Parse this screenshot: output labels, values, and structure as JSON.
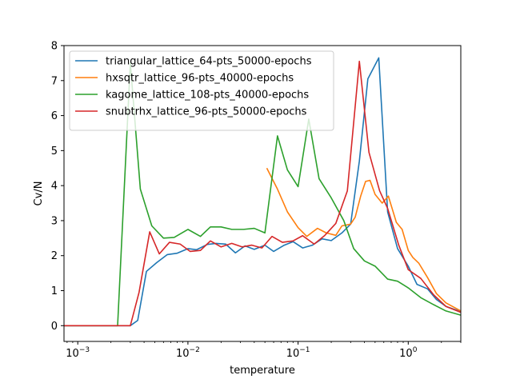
{
  "chart_data": {
    "type": "line",
    "xlabel": "temperature",
    "ylabel": "Cv/N",
    "xscale": "log",
    "xlim": [
      0.00075,
      3.0
    ],
    "ylim": [
      -0.45,
      8.0
    ],
    "x_ticks": [
      {
        "value": 0.001,
        "base": "10",
        "exp": "−3"
      },
      {
        "value": 0.01,
        "base": "10",
        "exp": "−2"
      },
      {
        "value": 0.1,
        "base": "10",
        "exp": "−1"
      },
      {
        "value": 1,
        "base": "10",
        "exp": "0"
      }
    ],
    "y_ticks": [
      0,
      1,
      2,
      3,
      4,
      5,
      6,
      7,
      8
    ],
    "legend_position": "upper-left",
    "series": [
      {
        "name": "triangular_lattice_64-pts_50000-epochs",
        "color": "#1f77b4",
        "x": [
          0.00075,
          0.001,
          0.0015,
          0.002,
          0.0025,
          0.003,
          0.0035,
          0.0042,
          0.0052,
          0.0065,
          0.008,
          0.01,
          0.012,
          0.015,
          0.018,
          0.022,
          0.027,
          0.033,
          0.04,
          0.05,
          0.06,
          0.075,
          0.09,
          0.11,
          0.135,
          0.165,
          0.2,
          0.25,
          0.3,
          0.36,
          0.43,
          0.54,
          0.65,
          0.8,
          1.0,
          1.2,
          1.5,
          1.8,
          2.2,
          3.0
        ],
        "y": [
          0,
          0,
          0,
          0,
          0,
          0,
          0.15,
          1.55,
          1.8,
          2.03,
          2.07,
          2.2,
          2.17,
          2.32,
          2.35,
          2.33,
          2.08,
          2.28,
          2.18,
          2.3,
          2.12,
          2.3,
          2.4,
          2.22,
          2.3,
          2.48,
          2.43,
          2.65,
          2.9,
          4.7,
          7.05,
          7.65,
          3.25,
          2.2,
          1.7,
          1.18,
          1.05,
          0.75,
          0.55,
          0.4
        ]
      },
      {
        "name": "hxsqtr_lattice_96-pts_40000-epochs",
        "color": "#ff7f0e",
        "x": [
          0.052,
          0.065,
          0.08,
          0.1,
          0.12,
          0.15,
          0.18,
          0.22,
          0.25,
          0.3,
          0.33,
          0.37,
          0.41,
          0.45,
          0.5,
          0.58,
          0.66,
          0.78,
          0.88,
          1.0,
          1.1,
          1.25,
          1.5,
          1.8,
          2.2,
          3.0
        ],
        "y": [
          4.5,
          3.9,
          3.25,
          2.8,
          2.55,
          2.78,
          2.65,
          2.58,
          2.85,
          2.9,
          3.1,
          3.7,
          4.12,
          4.15,
          3.75,
          3.5,
          3.7,
          2.95,
          2.75,
          2.15,
          1.95,
          1.78,
          1.37,
          0.92,
          0.65,
          0.42
        ]
      },
      {
        "name": "kagome_lattice_108-pts_40000-epochs",
        "color": "#2ca02c",
        "x": [
          0.00075,
          0.001,
          0.0015,
          0.002,
          0.0023,
          0.003,
          0.0037,
          0.0047,
          0.006,
          0.0075,
          0.01,
          0.013,
          0.016,
          0.02,
          0.025,
          0.032,
          0.04,
          0.05,
          0.065,
          0.08,
          0.1,
          0.125,
          0.155,
          0.2,
          0.26,
          0.32,
          0.4,
          0.5,
          0.65,
          0.8,
          1.0,
          1.3,
          1.7,
          2.2,
          3.0
        ],
        "y": [
          0,
          0,
          0,
          0,
          0,
          7.5,
          3.9,
          2.85,
          2.5,
          2.52,
          2.75,
          2.55,
          2.82,
          2.82,
          2.75,
          2.75,
          2.78,
          2.65,
          5.42,
          4.45,
          3.97,
          5.9,
          4.2,
          3.65,
          3.0,
          2.2,
          1.85,
          1.7,
          1.33,
          1.27,
          1.08,
          0.8,
          0.6,
          0.42,
          0.3
        ]
      },
      {
        "name": "snubtrhx_lattice_96-pts_50000-epochs",
        "color": "#d62728",
        "x": [
          0.00075,
          0.001,
          0.0015,
          0.002,
          0.0025,
          0.003,
          0.0036,
          0.0045,
          0.0055,
          0.0068,
          0.0085,
          0.0105,
          0.013,
          0.016,
          0.02,
          0.025,
          0.031,
          0.038,
          0.047,
          0.058,
          0.072,
          0.09,
          0.11,
          0.14,
          0.175,
          0.22,
          0.28,
          0.36,
          0.44,
          0.55,
          0.65,
          0.82,
          1.0,
          1.3,
          1.7,
          2.2,
          3.0
        ],
        "y": [
          0,
          0,
          0,
          0,
          0,
          0,
          0.95,
          2.68,
          2.05,
          2.38,
          2.33,
          2.12,
          2.15,
          2.42,
          2.25,
          2.35,
          2.25,
          2.3,
          2.22,
          2.55,
          2.38,
          2.42,
          2.57,
          2.33,
          2.58,
          2.92,
          3.85,
          7.55,
          4.95,
          3.85,
          3.35,
          2.3,
          1.6,
          1.35,
          0.88,
          0.55,
          0.38
        ]
      }
    ]
  }
}
